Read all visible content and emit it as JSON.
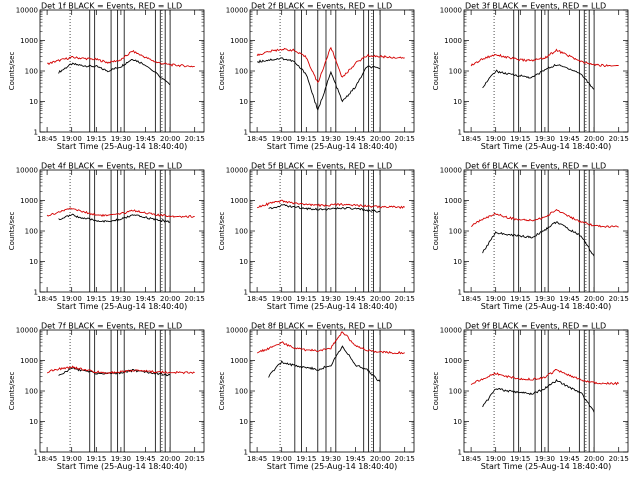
{
  "figure": {
    "xlabel": "Start Time (25-Aug-14 18:40:40)",
    "ylabel": "Counts/sec",
    "x_ticks": [
      "18:45",
      "19:00",
      "19:15",
      "19:30",
      "19:45",
      "20:00",
      "20:15"
    ],
    "y_ticks": [
      "1",
      "10",
      "100",
      "1000",
      "10000"
    ],
    "colors": {
      "events": "#000000",
      "lld": "#d40000",
      "background": "#ffffff"
    }
  },
  "chart_data": [
    {
      "type": "line",
      "title": "Det 1f BLACK = Events, RED = LLD",
      "xlabel": "Start Time (25-Aug-14 18:40:40)",
      "ylabel": "Counts/sec",
      "yscale": "log",
      "ylim": [
        1,
        10000
      ],
      "x": [
        "18:45",
        "18:52",
        "19:00",
        "19:07",
        "19:15",
        "19:22",
        "19:30",
        "19:37",
        "19:45",
        "19:52",
        "20:00",
        "20:07",
        "20:15"
      ],
      "series": [
        {
          "name": "BLACK = Events",
          "values": [
            null,
            90,
            170,
            150,
            140,
            100,
            140,
            250,
            160,
            null,
            35,
            null,
            null
          ]
        },
        {
          "name": "RED = LLD",
          "values": [
            170,
            220,
            280,
            260,
            240,
            190,
            230,
            450,
            280,
            190,
            160,
            150,
            140
          ]
        }
      ],
      "vlines": [
        "19:11",
        "19:14",
        "19:24",
        "19:28",
        "19:32",
        "19:51",
        "19:54",
        "19:57",
        "20:00"
      ],
      "dotted_vlines": [
        "18:59",
        "19:55"
      ]
    },
    {
      "type": "line",
      "title": "Det 2f BLACK = Events, RED = LLD",
      "xlabel": "Start Time (25-Aug-14 18:40:40)",
      "ylabel": "Counts/sec",
      "yscale": "log",
      "ylim": [
        1,
        10000
      ],
      "x": [
        "18:45",
        "18:52",
        "19:00",
        "19:07",
        "19:15",
        "19:22",
        "19:30",
        "19:37",
        "19:45",
        "19:52",
        "20:00",
        "20:07",
        "20:15"
      ],
      "series": [
        {
          "name": "BLACK = Events",
          "values": [
            200,
            230,
            260,
            210,
            80,
            5,
            90,
            10,
            30,
            140,
            120,
            null,
            null
          ]
        },
        {
          "name": "RED = LLD",
          "values": [
            330,
            430,
            520,
            480,
            280,
            40,
            600,
            60,
            180,
            320,
            300,
            280,
            270
          ]
        }
      ],
      "vlines": [
        "19:08",
        "19:12",
        "19:22",
        "19:27",
        "19:33",
        "19:50",
        "19:53",
        "19:56",
        "20:00"
      ],
      "dotted_vlines": [
        "18:59",
        "19:55"
      ]
    },
    {
      "type": "line",
      "title": "Det 3f BLACK = Events, RED = LLD",
      "xlabel": "Start Time (25-Aug-14 18:40:40)",
      "ylabel": "Counts/sec",
      "yscale": "log",
      "ylim": [
        1,
        10000
      ],
      "x": [
        "18:45",
        "18:52",
        "19:00",
        "19:07",
        "19:15",
        "19:22",
        "19:30",
        "19:37",
        "19:45",
        "19:52",
        "20:00",
        "20:07",
        "20:15"
      ],
      "series": [
        {
          "name": "BLACK = Events",
          "values": [
            null,
            30,
            100,
            80,
            70,
            60,
            110,
            160,
            120,
            80,
            25,
            null,
            null
          ]
        },
        {
          "name": "RED = LLD",
          "values": [
            150,
            250,
            350,
            280,
            230,
            220,
            270,
            480,
            310,
            200,
            160,
            150,
            150
          ]
        }
      ],
      "vlines": [
        "19:11",
        "19:14",
        "19:24",
        "19:28",
        "19:32",
        "19:51",
        "19:54",
        "19:57",
        "20:00"
      ],
      "dotted_vlines": [
        "18:59",
        "19:55"
      ]
    },
    {
      "type": "line",
      "title": "Det 4f BLACK = Events, RED = LLD",
      "xlabel": "Start Time (25-Aug-14 18:40:40)",
      "ylabel": "Counts/sec",
      "yscale": "log",
      "ylim": [
        1,
        10000
      ],
      "x": [
        "18:45",
        "18:52",
        "19:00",
        "19:07",
        "19:15",
        "19:22",
        "19:30",
        "19:37",
        "19:45",
        "19:52",
        "20:00",
        "20:07",
        "20:15"
      ],
      "series": [
        {
          "name": "BLACK = Events",
          "values": [
            null,
            240,
            340,
            260,
            220,
            200,
            240,
            330,
            280,
            230,
            200,
            null,
            null
          ]
        },
        {
          "name": "RED = LLD",
          "values": [
            310,
            420,
            560,
            420,
            340,
            320,
            360,
            480,
            400,
            330,
            310,
            300,
            300
          ]
        }
      ],
      "vlines": [
        "19:11",
        "19:14",
        "19:24",
        "19:28",
        "19:32",
        "19:51",
        "19:54",
        "19:57",
        "20:00"
      ],
      "dotted_vlines": [
        "18:59",
        "19:55"
      ]
    },
    {
      "type": "line",
      "title": "Det 5f BLACK = Events, RED = LLD",
      "xlabel": "Start Time (25-Aug-14 18:40:40)",
      "ylabel": "Counts/sec",
      "yscale": "log",
      "ylim": [
        1,
        10000
      ],
      "x": [
        "18:45",
        "18:52",
        "19:00",
        "19:07",
        "19:15",
        "19:22",
        "19:30",
        "19:37",
        "19:45",
        "19:52",
        "20:00",
        "20:07",
        "20:15"
      ],
      "series": [
        {
          "name": "BLACK = Events",
          "values": [
            null,
            540,
            700,
            620,
            550,
            520,
            520,
            560,
            530,
            480,
            430,
            null,
            null
          ]
        },
        {
          "name": "RED = LLD",
          "values": [
            620,
            780,
            950,
            820,
            730,
            690,
            700,
            760,
            710,
            650,
            620,
            610,
            600
          ]
        }
      ],
      "vlines": [
        "19:08",
        "19:12",
        "19:22",
        "19:27",
        "19:33",
        "19:50",
        "19:53",
        "19:56",
        "20:00"
      ],
      "dotted_vlines": [
        "18:59",
        "19:55"
      ]
    },
    {
      "type": "line",
      "title": "Det 6f BLACK = Events, RED = LLD",
      "xlabel": "Start Time (25-Aug-14 18:40:40)",
      "ylabel": "Counts/sec",
      "yscale": "log",
      "ylim": [
        1,
        10000
      ],
      "x": [
        "18:45",
        "18:52",
        "19:00",
        "19:07",
        "19:15",
        "19:22",
        "19:30",
        "19:37",
        "19:45",
        "19:52",
        "20:00",
        "20:07",
        "20:15"
      ],
      "series": [
        {
          "name": "BLACK = Events",
          "values": [
            null,
            20,
            90,
            75,
            70,
            60,
            110,
            200,
            110,
            70,
            15,
            null,
            null
          ]
        },
        {
          "name": "RED = LLD",
          "values": [
            150,
            240,
            370,
            280,
            230,
            220,
            280,
            500,
            300,
            190,
            150,
            140,
            135
          ]
        }
      ],
      "vlines": [
        "19:11",
        "19:14",
        "19:24",
        "19:28",
        "19:32",
        "19:51",
        "19:54",
        "19:57",
        "20:00"
      ],
      "dotted_vlines": [
        "18:59",
        "19:55"
      ]
    },
    {
      "type": "line",
      "title": "Det 7f BLACK = Events, RED = LLD",
      "xlabel": "Start Time (25-Aug-14 18:40:40)",
      "ylabel": "Counts/sec",
      "yscale": "log",
      "ylim": [
        1,
        10000
      ],
      "x": [
        "18:45",
        "18:52",
        "19:00",
        "19:07",
        "19:15",
        "19:22",
        "19:30",
        "19:37",
        "19:45",
        "19:52",
        "20:00",
        "20:07",
        "20:15"
      ],
      "series": [
        {
          "name": "BLACK = Events",
          "values": [
            null,
            320,
            560,
            470,
            380,
            370,
            400,
            470,
            430,
            370,
            330,
            null,
            null
          ]
        },
        {
          "name": "RED = LLD",
          "values": [
            420,
            520,
            620,
            500,
            420,
            400,
            420,
            480,
            450,
            420,
            410,
            400,
            400
          ]
        }
      ],
      "vlines": [
        "19:11",
        "19:14",
        "19:24",
        "19:28",
        "19:32",
        "19:51",
        "19:54",
        "19:57",
        "20:00"
      ],
      "dotted_vlines": [
        "18:59",
        "19:55"
      ]
    },
    {
      "type": "line",
      "title": "Det 8f BLACK = Events, RED = LLD",
      "xlabel": "Start Time (25-Aug-14 18:40:40)",
      "ylabel": "Counts/sec",
      "yscale": "log",
      "ylim": [
        1,
        10000
      ],
      "x": [
        "18:45",
        "18:52",
        "19:00",
        "19:07",
        "19:15",
        "19:22",
        "19:30",
        "19:37",
        "19:45",
        "19:52",
        "20:00",
        "20:07",
        "20:15"
      ],
      "series": [
        {
          "name": "BLACK = Events",
          "values": [
            null,
            300,
            900,
            700,
            600,
            500,
            700,
            3000,
            700,
            500,
            200,
            null,
            null
          ]
        },
        {
          "name": "RED = LLD",
          "values": [
            1800,
            2500,
            4000,
            2600,
            2200,
            2100,
            2600,
            9000,
            3000,
            2200,
            1900,
            1800,
            1800
          ]
        }
      ],
      "vlines": [
        "19:08",
        "19:12",
        "19:22",
        "19:27",
        "19:33",
        "19:50",
        "19:53",
        "19:56",
        "20:00"
      ],
      "dotted_vlines": [
        "18:59",
        "19:55"
      ]
    },
    {
      "type": "line",
      "title": "Det 9f BLACK = Events, RED = LLD",
      "xlabel": "Start Time (25-Aug-14 18:40:40)",
      "ylabel": "Counts/sec",
      "yscale": "log",
      "ylim": [
        1,
        10000
      ],
      "x": [
        "18:45",
        "18:52",
        "19:00",
        "19:07",
        "19:15",
        "19:22",
        "19:30",
        "19:37",
        "19:45",
        "19:52",
        "20:00",
        "20:07",
        "20:15"
      ],
      "series": [
        {
          "name": "BLACK = Events",
          "values": [
            null,
            30,
            120,
            100,
            90,
            80,
            120,
            220,
            130,
            90,
            20,
            null,
            null
          ]
        },
        {
          "name": "RED = LLD",
          "values": [
            170,
            250,
            380,
            300,
            250,
            240,
            280,
            500,
            320,
            230,
            190,
            180,
            175
          ]
        }
      ],
      "vlines": [
        "19:11",
        "19:14",
        "19:24",
        "19:28",
        "19:32",
        "19:51",
        "19:54",
        "19:57",
        "20:00"
      ],
      "dotted_vlines": [
        "18:59",
        "19:55"
      ]
    }
  ]
}
